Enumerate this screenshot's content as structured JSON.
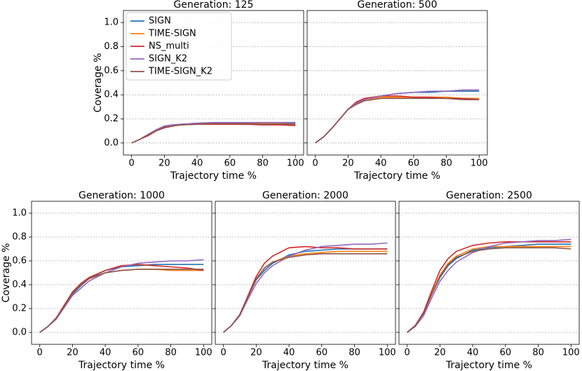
{
  "chart_data": [
    {
      "type": "line",
      "title": "Generation: 125",
      "xlabel": "Trajectory time %",
      "ylabel": "Coverage %",
      "x": [
        0,
        5,
        10,
        15,
        20,
        25,
        30,
        40,
        50,
        60,
        70,
        80,
        90,
        100
      ],
      "series": [
        {
          "name": "SIGN",
          "color": "#1f77b4",
          "values": [
            0,
            0.03,
            0.07,
            0.11,
            0.14,
            0.15,
            0.155,
            0.16,
            0.165,
            0.165,
            0.165,
            0.165,
            0.165,
            0.165
          ]
        },
        {
          "name": "TIME-SIGN",
          "color": "#ff7f0e",
          "values": [
            0,
            0.03,
            0.07,
            0.11,
            0.13,
            0.145,
            0.15,
            0.16,
            0.16,
            0.16,
            0.16,
            0.16,
            0.16,
            0.155
          ]
        },
        {
          "name": "NS_multi",
          "color": "#d62728",
          "values": [
            0,
            0.03,
            0.06,
            0.1,
            0.13,
            0.14,
            0.15,
            0.155,
            0.155,
            0.155,
            0.155,
            0.15,
            0.15,
            0.145
          ]
        },
        {
          "name": "SIGN_K2",
          "color": "#9467bd",
          "values": [
            0,
            0.03,
            0.07,
            0.11,
            0.14,
            0.15,
            0.155,
            0.165,
            0.17,
            0.17,
            0.17,
            0.17,
            0.17,
            0.17
          ]
        },
        {
          "name": "TIME-SIGN_K2",
          "color": "#8c564b",
          "values": [
            0,
            0.03,
            0.065,
            0.1,
            0.125,
            0.14,
            0.15,
            0.155,
            0.16,
            0.16,
            0.16,
            0.155,
            0.155,
            0.155
          ]
        }
      ],
      "xlim": [
        -5,
        105
      ],
      "ylim": [
        -0.1,
        1.1
      ],
      "xticks": [
        0,
        20,
        40,
        60,
        80,
        100
      ],
      "yticks": [
        {
          "value": 0,
          "label": "0.0"
        },
        0.2,
        0.4,
        0.6,
        0.8,
        {
          "value": 1,
          "label": "1.0"
        }
      ],
      "grid": true,
      "show_ytick_labels": true,
      "legend": "upper left"
    },
    {
      "type": "line",
      "title": "Generation: 500",
      "xlabel": "Trajectory time %",
      "x": [
        0,
        5,
        10,
        15,
        20,
        25,
        30,
        40,
        50,
        60,
        70,
        80,
        90,
        100
      ],
      "series": [
        {
          "name": "SIGN",
          "color": "#1f77b4",
          "values": [
            0,
            0.05,
            0.12,
            0.2,
            0.28,
            0.33,
            0.36,
            0.39,
            0.41,
            0.42,
            0.42,
            0.43,
            0.43,
            0.43
          ]
        },
        {
          "name": "TIME-SIGN",
          "color": "#ff7f0e",
          "values": [
            0,
            0.05,
            0.12,
            0.2,
            0.28,
            0.33,
            0.36,
            0.38,
            0.38,
            0.38,
            0.38,
            0.38,
            0.37,
            0.37
          ]
        },
        {
          "name": "NS_multi",
          "color": "#d62728",
          "values": [
            0,
            0.05,
            0.12,
            0.2,
            0.28,
            0.34,
            0.37,
            0.39,
            0.39,
            0.38,
            0.38,
            0.37,
            0.37,
            0.36
          ]
        },
        {
          "name": "SIGN_K2",
          "color": "#9467bd",
          "values": [
            0,
            0.05,
            0.12,
            0.2,
            0.28,
            0.33,
            0.36,
            0.39,
            0.41,
            0.42,
            0.43,
            0.43,
            0.44,
            0.44
          ]
        },
        {
          "name": "TIME-SIGN_K2",
          "color": "#8c564b",
          "values": [
            0,
            0.05,
            0.12,
            0.2,
            0.28,
            0.32,
            0.35,
            0.37,
            0.37,
            0.37,
            0.37,
            0.37,
            0.36,
            0.36
          ]
        }
      ],
      "xlim": [
        -5,
        105
      ],
      "ylim": [
        -0.1,
        1.1
      ],
      "xticks": [
        0,
        20,
        40,
        60,
        80,
        100
      ],
      "yticks": [
        {
          "value": 0,
          "label": "0.0"
        },
        0.2,
        0.4,
        0.6,
        0.8,
        {
          "value": 1,
          "label": "1.0"
        }
      ],
      "grid": true,
      "show_ytick_labels": false
    },
    {
      "type": "line",
      "title": "Generation: 1000",
      "xlabel": "Trajectory time %",
      "ylabel": "Coverage %",
      "x": [
        0,
        5,
        10,
        15,
        20,
        25,
        30,
        40,
        50,
        60,
        70,
        80,
        90,
        100
      ],
      "series": [
        {
          "name": "SIGN",
          "color": "#1f77b4",
          "values": [
            0,
            0.05,
            0.12,
            0.22,
            0.32,
            0.39,
            0.45,
            0.52,
            0.55,
            0.56,
            0.57,
            0.57,
            0.57,
            0.57
          ]
        },
        {
          "name": "TIME-SIGN",
          "color": "#ff7f0e",
          "values": [
            0,
            0.05,
            0.12,
            0.23,
            0.33,
            0.4,
            0.45,
            0.5,
            0.52,
            0.53,
            0.53,
            0.52,
            0.52,
            0.52
          ]
        },
        {
          "name": "NS_multi",
          "color": "#d62728",
          "values": [
            0,
            0.05,
            0.12,
            0.23,
            0.34,
            0.41,
            0.46,
            0.52,
            0.56,
            0.57,
            0.56,
            0.55,
            0.54,
            0.52
          ]
        },
        {
          "name": "SIGN_K2",
          "color": "#9467bd",
          "values": [
            0,
            0.05,
            0.11,
            0.21,
            0.31,
            0.37,
            0.43,
            0.5,
            0.55,
            0.58,
            0.59,
            0.6,
            0.6,
            0.61
          ]
        },
        {
          "name": "TIME-SIGN_K2",
          "color": "#8c564b",
          "values": [
            0,
            0.05,
            0.12,
            0.22,
            0.33,
            0.4,
            0.45,
            0.5,
            0.52,
            0.53,
            0.53,
            0.53,
            0.53,
            0.53
          ]
        }
      ],
      "xlim": [
        -5,
        105
      ],
      "ylim": [
        -0.1,
        1.1
      ],
      "xticks": [
        0,
        20,
        40,
        60,
        80,
        100
      ],
      "yticks": [
        {
          "value": 0,
          "label": "0.0"
        },
        0.2,
        0.4,
        0.6,
        0.8,
        {
          "value": 1,
          "label": "1.0"
        }
      ],
      "grid": true,
      "show_ytick_labels": true
    },
    {
      "type": "line",
      "title": "Generation: 2000",
      "xlabel": "Trajectory time %",
      "x": [
        0,
        5,
        10,
        15,
        20,
        25,
        30,
        40,
        50,
        60,
        70,
        80,
        90,
        100
      ],
      "series": [
        {
          "name": "SIGN",
          "color": "#1f77b4",
          "values": [
            0,
            0.06,
            0.15,
            0.3,
            0.44,
            0.52,
            0.58,
            0.65,
            0.68,
            0.69,
            0.7,
            0.7,
            0.7,
            0.7
          ]
        },
        {
          "name": "TIME-SIGN",
          "color": "#ff7f0e",
          "values": [
            0,
            0.06,
            0.15,
            0.3,
            0.45,
            0.54,
            0.59,
            0.64,
            0.66,
            0.67,
            0.68,
            0.68,
            0.68,
            0.68
          ]
        },
        {
          "name": "NS_multi",
          "color": "#d62728",
          "values": [
            0,
            0.06,
            0.15,
            0.31,
            0.47,
            0.58,
            0.64,
            0.71,
            0.72,
            0.71,
            0.71,
            0.7,
            0.7,
            0.7
          ]
        },
        {
          "name": "SIGN_K2",
          "color": "#9467bd",
          "values": [
            0,
            0.06,
            0.14,
            0.28,
            0.41,
            0.5,
            0.56,
            0.64,
            0.69,
            0.72,
            0.73,
            0.74,
            0.74,
            0.75
          ]
        },
        {
          "name": "TIME-SIGN_K2",
          "color": "#8c564b",
          "values": [
            0,
            0.06,
            0.15,
            0.3,
            0.45,
            0.54,
            0.59,
            0.63,
            0.65,
            0.66,
            0.66,
            0.66,
            0.66,
            0.66
          ]
        }
      ],
      "xlim": [
        -5,
        105
      ],
      "ylim": [
        -0.1,
        1.1
      ],
      "xticks": [
        0,
        20,
        40,
        60,
        80,
        100
      ],
      "yticks": [
        {
          "value": 0,
          "label": "0.0"
        },
        0.2,
        0.4,
        0.6,
        0.8,
        {
          "value": 1,
          "label": "1.0"
        }
      ],
      "grid": true,
      "show_ytick_labels": false
    },
    {
      "type": "line",
      "title": "Generation: 2500",
      "xlabel": "Trajectory time %",
      "x": [
        0,
        5,
        10,
        15,
        20,
        25,
        30,
        40,
        50,
        60,
        70,
        80,
        90,
        100
      ],
      "series": [
        {
          "name": "SIGN",
          "color": "#1f77b4",
          "values": [
            0,
            0.06,
            0.16,
            0.32,
            0.46,
            0.56,
            0.62,
            0.69,
            0.71,
            0.72,
            0.73,
            0.74,
            0.74,
            0.74
          ]
        },
        {
          "name": "TIME-SIGN",
          "color": "#ff7f0e",
          "values": [
            0,
            0.06,
            0.16,
            0.33,
            0.48,
            0.58,
            0.64,
            0.7,
            0.72,
            0.72,
            0.72,
            0.72,
            0.72,
            0.72
          ]
        },
        {
          "name": "NS_multi",
          "color": "#d62728",
          "values": [
            0,
            0.06,
            0.17,
            0.35,
            0.52,
            0.62,
            0.68,
            0.73,
            0.75,
            0.76,
            0.76,
            0.76,
            0.76,
            0.76
          ]
        },
        {
          "name": "SIGN_K2",
          "color": "#9467bd",
          "values": [
            0,
            0.05,
            0.14,
            0.29,
            0.43,
            0.52,
            0.59,
            0.67,
            0.72,
            0.75,
            0.76,
            0.77,
            0.77,
            0.78
          ]
        },
        {
          "name": "TIME-SIGN_K2",
          "color": "#8c564b",
          "values": [
            0,
            0.06,
            0.16,
            0.32,
            0.47,
            0.57,
            0.63,
            0.68,
            0.7,
            0.71,
            0.71,
            0.71,
            0.71,
            0.7
          ]
        }
      ],
      "xlim": [
        -5,
        105
      ],
      "ylim": [
        -0.1,
        1.1
      ],
      "xticks": [
        0,
        20,
        40,
        60,
        80,
        100
      ],
      "yticks": [
        {
          "value": 0,
          "label": "0.0"
        },
        0.2,
        0.4,
        0.6,
        0.8,
        {
          "value": 1,
          "label": "1.0"
        }
      ],
      "grid": true,
      "show_ytick_labels": false
    }
  ]
}
